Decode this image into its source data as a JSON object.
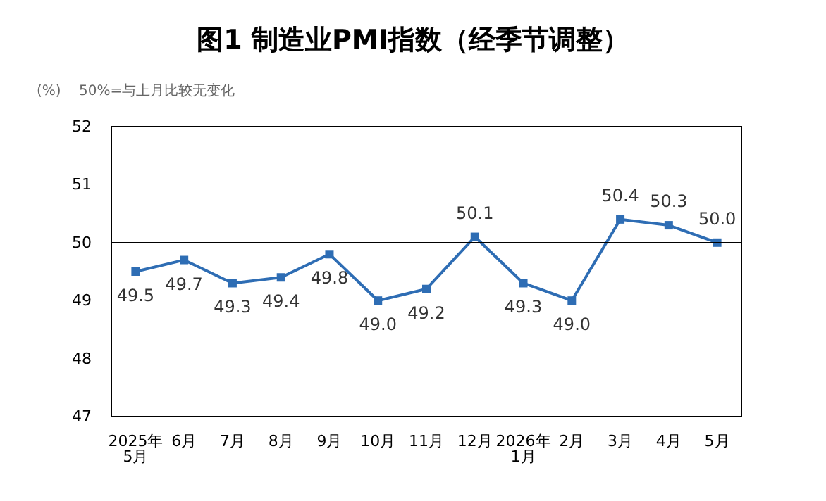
{
  "chart_data": {
    "type": "line",
    "title": "图1 制造业PMI指数（经季节调整）",
    "ylabel": "(%)",
    "annotations": [
      "50%=与上月比较无变化"
    ],
    "categories": [
      "2025年\n5月",
      "6月",
      "7月",
      "8月",
      "9月",
      "10月",
      "11月",
      "12月",
      "2026年\n1月",
      "2月",
      "3月",
      "4月",
      "5月"
    ],
    "series": [
      {
        "color": "#2e6db4",
        "values": [
          49.5,
          49.7,
          49.3,
          49.4,
          49.8,
          49.0,
          49.2,
          50.1,
          49.3,
          49.0,
          50.4,
          50.3,
          50.0
        ],
        "value_labels": [
          "49.5",
          "49.7",
          "49.3",
          "49.4",
          "49.8",
          "49.0",
          "49.2",
          "50.1",
          "49.3",
          "49.0",
          "50.4",
          "50.3",
          "50.0"
        ]
      }
    ],
    "ylim": [
      47,
      52
    ],
    "yticks": [
      47,
      48,
      49,
      50,
      51,
      52
    ],
    "grid": false,
    "marker": "square",
    "line_style": "solid",
    "ref_lines": [
      {
        "axis": "y",
        "value": 50,
        "color": "#000000"
      }
    ]
  }
}
